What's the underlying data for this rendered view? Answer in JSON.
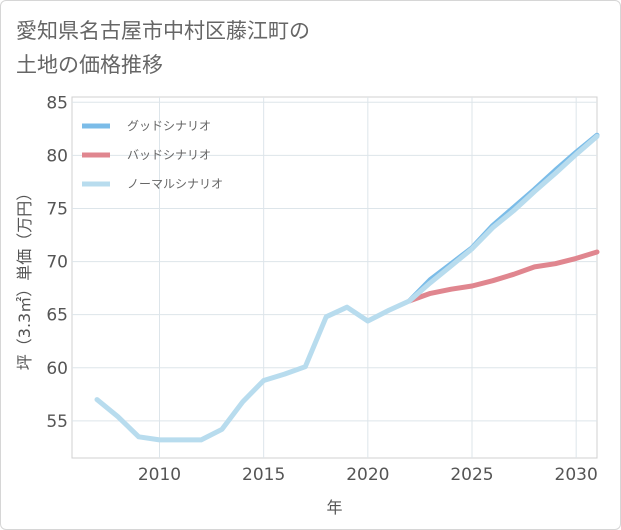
{
  "title_line1": "愛知県名古屋市中村区藤江町の",
  "title_line2": "土地の価格推移",
  "chart_data": {
    "type": "line",
    "title": "愛知県名古屋市中村区藤江町の土地の価格推移",
    "xlabel": "年",
    "ylabel": "坪（3.3㎡）単価（万円）",
    "xlim": [
      2005.8,
      2031
    ],
    "ylim": [
      51.5,
      85.5
    ],
    "xticks": [
      2010,
      2015,
      2020,
      2025,
      2030
    ],
    "yticks": [
      55,
      60,
      65,
      70,
      75,
      80,
      85
    ],
    "grid": true,
    "legend_position": "top-left",
    "series": [
      {
        "name": "グッドシナリオ",
        "color": "#7bbce8",
        "x": [
          2022,
          2023,
          2024,
          2025,
          2026,
          2027,
          2028,
          2029,
          2030,
          2031
        ],
        "values": [
          66.3,
          68.3,
          69.8,
          71.3,
          73.4,
          75.1,
          76.8,
          78.6,
          80.3,
          81.9
        ]
      },
      {
        "name": "バッドシナリオ",
        "color": "#e0868f",
        "x": [
          2022,
          2023,
          2024,
          2025,
          2026,
          2027,
          2028,
          2029,
          2030,
          2031
        ],
        "values": [
          66.3,
          67.0,
          67.4,
          67.7,
          68.2,
          68.8,
          69.5,
          69.8,
          70.3,
          70.9
        ]
      },
      {
        "name": "ノーマルシナリオ",
        "color": "#b8dcee",
        "x": [
          2007,
          2008,
          2009,
          2010,
          2011,
          2012,
          2013,
          2014,
          2015,
          2016,
          2017,
          2018,
          2019,
          2020,
          2021,
          2022,
          2023,
          2024,
          2025,
          2026,
          2027,
          2028,
          2029,
          2030,
          2031
        ],
        "values": [
          57.0,
          55.4,
          53.5,
          53.2,
          53.2,
          53.2,
          54.2,
          56.8,
          58.8,
          59.4,
          60.1,
          64.8,
          65.7,
          64.4,
          65.4,
          66.3,
          68.0,
          69.6,
          71.2,
          73.2,
          74.8,
          76.6,
          78.3,
          80.1,
          81.8
        ]
      }
    ]
  }
}
